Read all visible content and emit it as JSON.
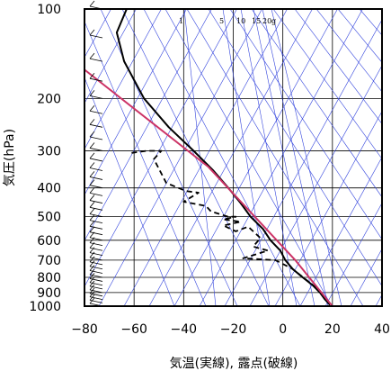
{
  "chart_data": {
    "type": "line",
    "title": "",
    "xlabel": "気温(実線), 露点(破線)",
    "ylabel": "気圧(hPa)",
    "x_scale": "linear",
    "y_scale": "log",
    "xlim": [
      -80,
      40
    ],
    "ylim": [
      1000,
      100
    ],
    "x_ticks": [
      -80,
      -60,
      -40,
      -20,
      0,
      20,
      40
    ],
    "y_ticks": [
      100,
      200,
      300,
      400,
      500,
      600,
      700,
      800,
      900,
      1000
    ],
    "grid": true,
    "skew_t": true,
    "mixing_ratio_labels": [
      "1",
      "5",
      "10",
      "15",
      "20",
      "g"
    ],
    "series": [
      {
        "style": "solid",
        "color": "#000000",
        "points": [
          [
            -63,
            100
          ],
          [
            -67,
            120
          ],
          [
            -64,
            150
          ],
          [
            -56,
            200
          ],
          [
            -46,
            250
          ],
          [
            -36,
            300
          ],
          [
            -28,
            350
          ],
          [
            -22,
            400
          ],
          [
            -17,
            450
          ],
          [
            -13,
            500
          ],
          [
            -8,
            550
          ],
          [
            -5,
            600
          ],
          [
            -1,
            650
          ],
          [
            1,
            700
          ],
          [
            4,
            750
          ],
          [
            8,
            800
          ],
          [
            12,
            850
          ],
          [
            15,
            900
          ],
          [
            17,
            950
          ],
          [
            19,
            990
          ]
        ]
      },
      {
        "style": "dashed",
        "color": "#000000",
        "points": [
          [
            -61,
            305
          ],
          [
            -55,
            300
          ],
          [
            -49,
            300
          ],
          [
            -52,
            320
          ],
          [
            -47,
            385
          ],
          [
            -39,
            410
          ],
          [
            -34,
            415
          ],
          [
            -40,
            445
          ],
          [
            -31,
            460
          ],
          [
            -29,
            480
          ],
          [
            -22,
            500
          ],
          [
            -19,
            500
          ],
          [
            -24,
            510
          ],
          [
            -17,
            520
          ],
          [
            -24,
            535
          ],
          [
            -19,
            560
          ],
          [
            -14,
            540
          ],
          [
            -9,
            590
          ],
          [
            -12,
            630
          ],
          [
            -6,
            650
          ],
          [
            -16,
            690
          ],
          [
            -3,
            700
          ],
          [
            4,
            750
          ],
          [
            9,
            810
          ],
          [
            13,
            860
          ],
          [
            16,
            920
          ],
          [
            19,
            980
          ]
        ]
      },
      {
        "style": "solid",
        "color": "#cc3366",
        "points": [
          [
            -80,
            160
          ],
          [
            -30,
            340
          ],
          [
            5,
            700
          ],
          [
            20,
            1000
          ]
        ]
      }
    ]
  }
}
